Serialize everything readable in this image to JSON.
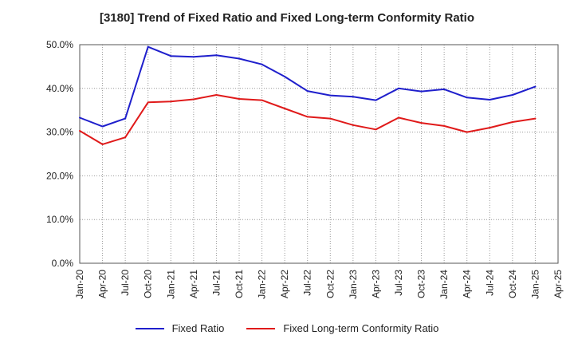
{
  "chart_data": {
    "type": "line",
    "title": "[3180]  Trend of Fixed Ratio and Fixed Long-term Conformity Ratio",
    "xlabel": "",
    "ylabel": "",
    "ylim": [
      0,
      50
    ],
    "y_ticks": [
      "0.0%",
      "10.0%",
      "20.0%",
      "30.0%",
      "40.0%",
      "50.0%"
    ],
    "categories": [
      "Jan-20",
      "Apr-20",
      "Jul-20",
      "Oct-20",
      "Jan-21",
      "Apr-21",
      "Jul-21",
      "Oct-21",
      "Jan-22",
      "Apr-22",
      "Jul-22",
      "Oct-22",
      "Jan-23",
      "Apr-23",
      "Jul-23",
      "Oct-23",
      "Jan-24",
      "Apr-24",
      "Jul-24",
      "Oct-24",
      "Jan-25",
      "Apr-25"
    ],
    "grid": true,
    "legend": "bottom",
    "series": [
      {
        "name": "Fixed Ratio",
        "color": "#1f1fcc",
        "values": [
          33.3,
          31.3,
          33.1,
          49.5,
          47.4,
          47.2,
          47.6,
          46.8,
          45.5,
          42.7,
          39.4,
          38.4,
          38.1,
          37.3,
          40.0,
          39.3,
          39.8,
          37.9,
          37.4,
          38.5,
          40.4,
          null
        ]
      },
      {
        "name": "Fixed Long-term Conformity Ratio",
        "color": "#e01a1a",
        "values": [
          30.3,
          27.2,
          28.8,
          36.8,
          37.0,
          37.5,
          38.5,
          37.6,
          37.3,
          35.4,
          33.5,
          33.1,
          31.6,
          30.6,
          33.3,
          32.1,
          31.4,
          30.0,
          31.0,
          32.3,
          33.1,
          null
        ]
      }
    ]
  }
}
